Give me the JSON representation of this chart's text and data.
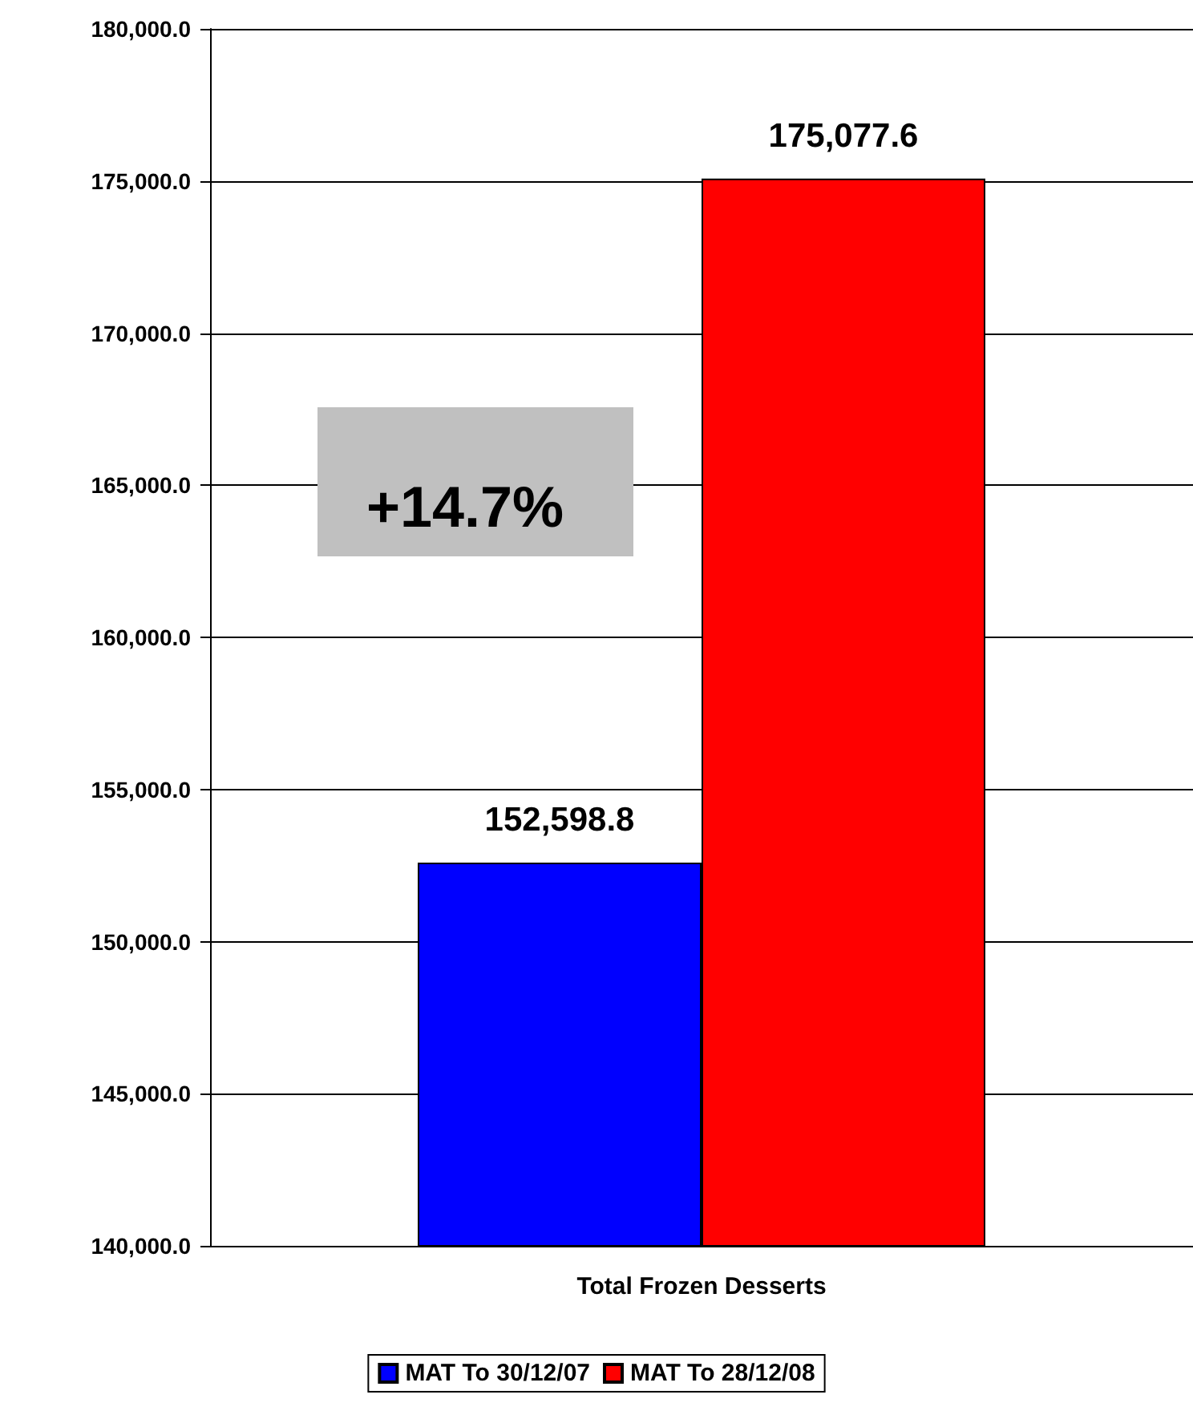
{
  "chart_data": {
    "type": "bar",
    "categories": [
      "Total Frozen Desserts"
    ],
    "series": [
      {
        "name": "MAT To 30/12/07",
        "color": "#0000ff",
        "values": [
          152598.8
        ],
        "value_labels": [
          "152,598.8"
        ]
      },
      {
        "name": "MAT To 28/12/08",
        "color": "#ff0000",
        "values": [
          175077.6
        ],
        "value_labels": [
          "175,077.6"
        ]
      }
    ],
    "ylim": [
      140000,
      180000
    ],
    "yticks": [
      {
        "value": 140000,
        "label": "140,000.0"
      },
      {
        "value": 145000,
        "label": "145,000.0"
      },
      {
        "value": 150000,
        "label": "150,000.0"
      },
      {
        "value": 155000,
        "label": "155,000.0"
      },
      {
        "value": 160000,
        "label": "160,000.0"
      },
      {
        "value": 165000,
        "label": "165,000.0"
      },
      {
        "value": 170000,
        "label": "170,000.0"
      },
      {
        "value": 175000,
        "label": "175,000.0"
      },
      {
        "value": 180000,
        "label": "180,000.0"
      }
    ],
    "grid": "y",
    "legend": "bottom",
    "annotations": [
      "+14.7%"
    ]
  }
}
